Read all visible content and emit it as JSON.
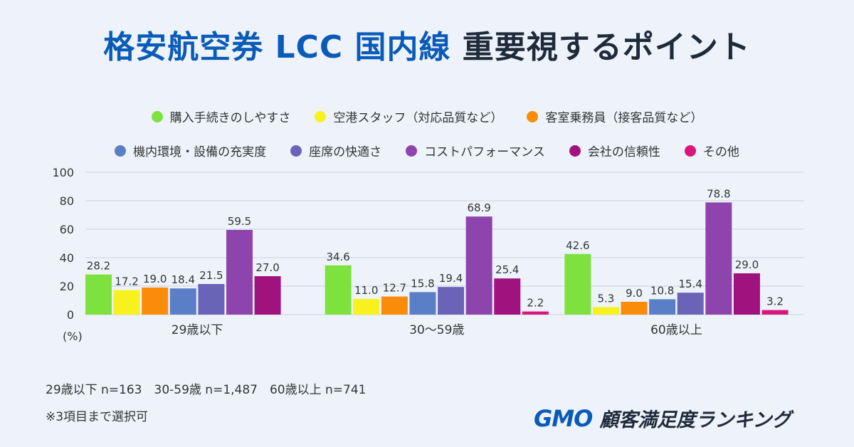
{
  "title": {
    "part1": "格安航空券 LCC 国内線",
    "part2": "重要視するポイント"
  },
  "legend_row1": [
    {
      "label": "購入手続きのしやすさ",
      "color": "#7ee23e"
    },
    {
      "label": "空港スタッフ（対応品質など）",
      "color": "#f7f21e"
    },
    {
      "label": "客室乗務員（接客品質など）",
      "color": "#fb8c0a"
    }
  ],
  "legend_row2": [
    {
      "label": "機内環境・設備の充実度",
      "color": "#5a7fc6"
    },
    {
      "label": "座席の快適さ",
      "color": "#6a64b8"
    },
    {
      "label": "コストパフォーマンス",
      "color": "#8e44ad"
    },
    {
      "label": "会社の信頼性",
      "color": "#a0137e"
    },
    {
      "label": "その他",
      "color": "#d9177a"
    }
  ],
  "chart_data": {
    "type": "bar",
    "categories": [
      "29歳以下",
      "30〜59歳",
      "60歳以上"
    ],
    "series": [
      {
        "name": "購入手続きのしやすさ",
        "color": "#7ee23e",
        "values": [
          28.2,
          34.6,
          42.6
        ],
        "labels": [
          "28.2",
          "34.6",
          "42.6"
        ]
      },
      {
        "name": "空港スタッフ（対応品質など）",
        "color": "#f7f21e",
        "values": [
          17.2,
          11.0,
          5.3
        ],
        "labels": [
          "17.2",
          "11.0",
          "5.3"
        ]
      },
      {
        "name": "客室乗務員（接客品質など）",
        "color": "#fb8c0a",
        "values": [
          19.0,
          12.7,
          9.0
        ],
        "labels": [
          "19.0",
          "12.7",
          "9.0"
        ]
      },
      {
        "name": "機内環境・設備の充実度",
        "color": "#5a7fc6",
        "values": [
          18.4,
          15.8,
          10.8
        ],
        "labels": [
          "18.4",
          "15.8",
          "10.8"
        ]
      },
      {
        "name": "座席の快適さ",
        "color": "#6a64b8",
        "values": [
          21.5,
          19.4,
          15.4
        ],
        "labels": [
          "21.5",
          "19.4",
          "15.4"
        ]
      },
      {
        "name": "コストパフォーマンス",
        "color": "#8e44ad",
        "values": [
          59.5,
          68.9,
          78.8
        ],
        "labels": [
          "59.5",
          "68.9",
          "78.8"
        ]
      },
      {
        "name": "会社の信頼性",
        "color": "#a0137e",
        "values": [
          27.0,
          25.4,
          29.0
        ],
        "labels": [
          "27.0",
          "25.4",
          "29.0"
        ]
      },
      {
        "name": "その他",
        "color": "#d9177a",
        "values": [
          0,
          2.2,
          3.2
        ],
        "labels": [
          "",
          "2.2",
          "3.2"
        ]
      }
    ],
    "ylim": [
      0,
      100
    ],
    "yticks": [
      "0",
      "20",
      "40",
      "60",
      "80",
      "100"
    ],
    "ylabel": "(%)",
    "grid": true
  },
  "footnotes": {
    "sample": "29歳以下 n=163　30-59歳 n=1,487　60歳以上 n=741",
    "note": "※3項目まで選択可"
  },
  "logo": {
    "mark": "GMO",
    "text": "顧客満足度ランキング"
  }
}
